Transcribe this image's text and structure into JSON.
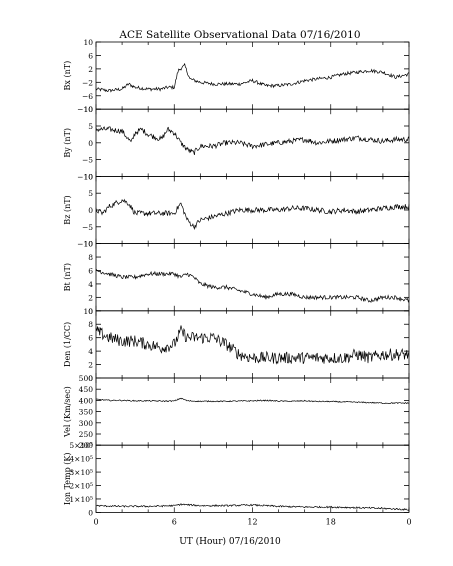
{
  "chart_data": {
    "type": "line",
    "title": "ACE Satellite Observational Data   07/16/2010",
    "xlabel": "UT (Hour)   07/16/2010",
    "x_ticks": [
      "0",
      "6",
      "12",
      "18",
      "0"
    ],
    "x_range": [
      0,
      24
    ],
    "panels": [
      {
        "ylabel": "Bx (nT)",
        "ylim": [
          -10,
          10
        ],
        "y_ticks": [
          "10",
          "6",
          "2",
          "−2",
          "−6",
          "−10"
        ],
        "y_tick_values": [
          10,
          6,
          2,
          -2,
          -6,
          -10
        ],
        "noise": 0.5,
        "x": [
          0,
          1,
          2,
          2.5,
          3,
          4,
          5,
          5.5,
          6,
          6.3,
          6.8,
          7.2,
          8,
          9,
          10,
          11,
          12,
          13,
          14,
          15,
          16,
          17,
          18,
          19,
          20,
          21,
          22,
          23,
          24
        ],
        "y": [
          -4,
          -4.5,
          -4,
          -2.5,
          -3.5,
          -4,
          -4,
          -3.5,
          -3.5,
          1.5,
          3,
          -1,
          -2,
          -2.5,
          -2.5,
          -2.5,
          -1.5,
          -3,
          -3,
          -2.5,
          -1.5,
          -1,
          -0.5,
          0.5,
          1,
          1.5,
          1,
          -0.5,
          0.5
        ]
      },
      {
        "ylabel": "By (nT)",
        "ylim": [
          -10,
          10
        ],
        "y_ticks": [
          "10",
          "5",
          "0",
          "−5",
          "−10"
        ],
        "y_tick_values": [
          10,
          5,
          0,
          -5,
          -10
        ],
        "noise": 0.8,
        "x": [
          0,
          1,
          2,
          2.7,
          3,
          3.5,
          4,
          5,
          5.5,
          6,
          6.5,
          7,
          7.5,
          8,
          9,
          10,
          11,
          12,
          13,
          14,
          15,
          16,
          17,
          18,
          19,
          20,
          21,
          22,
          23,
          24
        ],
        "y": [
          4,
          4,
          3.5,
          0,
          3,
          4,
          2.5,
          1,
          4,
          3,
          0,
          -2,
          -3,
          -1,
          -1,
          0,
          0,
          -1,
          -0.5,
          0,
          0.5,
          1,
          0,
          0.5,
          1,
          1.5,
          1,
          0.5,
          1,
          1
        ]
      },
      {
        "ylabel": "Bz (nT)",
        "ylim": [
          -10,
          10
        ],
        "y_ticks": [
          "10",
          "5",
          "0",
          "−5",
          "−10"
        ],
        "y_tick_values": [
          10,
          5,
          0,
          -5,
          -10
        ],
        "noise": 0.8,
        "x": [
          0,
          0.5,
          1,
          1.5,
          2,
          2.5,
          3,
          4,
          5,
          6,
          6.5,
          7,
          7.5,
          8,
          9,
          10,
          11,
          12,
          13,
          14,
          15,
          16,
          17,
          18,
          19,
          20,
          21,
          22,
          23,
          24
        ],
        "y": [
          0,
          -1,
          1,
          2,
          3,
          2,
          -1,
          -1,
          -1,
          -1,
          2,
          -3,
          -5,
          -3,
          -2,
          -1,
          0,
          0,
          0,
          0,
          0.5,
          0.5,
          0,
          -0.5,
          0,
          -0.5,
          0,
          0.5,
          1,
          1
        ]
      },
      {
        "ylabel": "Bt (nT)",
        "ylim": [
          0,
          10
        ],
        "y_ticks": [
          "10",
          "8",
          "6",
          "4",
          "2",
          "0"
        ],
        "y_tick_values": [
          10,
          8,
          6,
          4,
          2,
          0
        ],
        "noise": 0.3,
        "x": [
          0,
          1,
          2,
          3,
          4,
          5,
          6,
          6.5,
          7,
          7.5,
          8,
          9,
          10,
          11,
          12,
          13,
          14,
          15,
          16,
          17,
          18,
          19,
          20,
          21,
          22,
          23,
          24
        ],
        "y": [
          6,
          5.5,
          5,
          5,
          5.5,
          5.5,
          5.5,
          5,
          5.5,
          5,
          4,
          3.5,
          3.5,
          3,
          2.5,
          2,
          2.5,
          2.5,
          2,
          2,
          2,
          2,
          2,
          1.5,
          2,
          2,
          1.5
        ]
      },
      {
        "ylabel": "Den (1/CC)",
        "ylim": [
          0,
          10
        ],
        "y_ticks": [
          "10",
          "8",
          "6",
          "4",
          "2",
          "0"
        ],
        "y_tick_values": [
          10,
          8,
          6,
          4,
          2,
          0
        ],
        "noise": 0.9,
        "x": [
          0,
          0.5,
          1,
          2,
          3,
          4,
          5,
          6,
          6.5,
          7,
          8,
          9,
          10,
          11,
          12,
          13,
          14,
          15,
          16,
          17,
          18,
          19,
          20,
          21,
          22,
          23,
          24
        ],
        "y": [
          7,
          6.5,
          6,
          5.5,
          5.5,
          5,
          4.5,
          5,
          7,
          6,
          6,
          6,
          5,
          3.5,
          3,
          3,
          3,
          3,
          3,
          3,
          3,
          3,
          3.5,
          3,
          3.5,
          3.5,
          3.5
        ]
      },
      {
        "ylabel": "Vel (Km/sec)",
        "ylim": [
          200,
          500
        ],
        "y_ticks": [
          "500",
          "450",
          "400",
          "350",
          "300",
          "250",
          "200"
        ],
        "y_tick_values": [
          500,
          450,
          400,
          350,
          300,
          250,
          200
        ],
        "noise": 2.5,
        "x": [
          0,
          1,
          2,
          3,
          4,
          5,
          6,
          6.5,
          7,
          8,
          9,
          10,
          11,
          12,
          13,
          14,
          15,
          16,
          17,
          18,
          19,
          20,
          21,
          22,
          23,
          24
        ],
        "y": [
          405,
          400,
          400,
          398,
          398,
          397,
          397,
          410,
          398,
          396,
          396,
          396,
          397,
          398,
          400,
          397,
          396,
          398,
          395,
          395,
          393,
          392,
          390,
          388,
          388,
          388
        ]
      },
      {
        "ylabel": "Ion Temp (K)",
        "ylim": [
          0,
          500000
        ],
        "y_ticks": [
          "5×10⁵",
          "4×10⁵",
          "3×10⁵",
          "2×10⁵",
          "1×10⁵",
          "0"
        ],
        "y_tick_values": [
          500000,
          400000,
          300000,
          200000,
          100000,
          0
        ],
        "noise": 6000,
        "x": [
          0,
          2,
          4,
          6,
          6.5,
          8,
          10,
          12,
          14,
          16,
          18,
          20,
          22,
          24
        ],
        "y": [
          50000,
          45000,
          45000,
          50000,
          60000,
          50000,
          50000,
          55000,
          45000,
          40000,
          40000,
          35000,
          30000,
          20000
        ]
      }
    ]
  }
}
